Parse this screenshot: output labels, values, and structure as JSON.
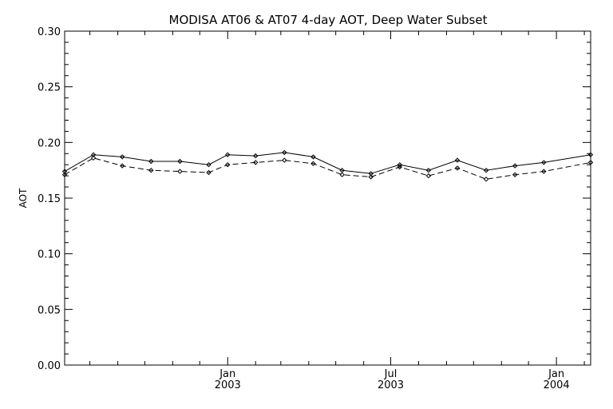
{
  "chart_data": {
    "type": "line",
    "title": "MODISA AT06 & AT07 4-day AOT, Deep Water Subset",
    "xlabel": "",
    "ylabel": "AOT",
    "ylim": [
      0.0,
      0.3
    ],
    "xlim": [
      "2002-07-04",
      "2004-02-08"
    ],
    "y_ticks": [
      "0.00",
      "0.05",
      "0.10",
      "0.15",
      "0.20",
      "0.25",
      "0.30"
    ],
    "x_ticks": [
      {
        "date": "2003-01-01",
        "month": "Jan",
        "year": "2003"
      },
      {
        "date": "2003-07-01",
        "month": "Jul",
        "year": "2003"
      },
      {
        "date": "2004-01-01",
        "month": "Jan",
        "year": "2004"
      }
    ],
    "grid": false,
    "series": [
      {
        "line_style": "solid",
        "marker": "diamond",
        "x": [
          "2002-07-04",
          "2002-08-05",
          "2002-09-06",
          "2002-10-08",
          "2002-11-09",
          "2002-12-11",
          "2003-01-01",
          "2003-02-01",
          "2003-03-05",
          "2003-04-06",
          "2003-05-08",
          "2003-06-09",
          "2003-07-11",
          "2003-08-12",
          "2003-09-13",
          "2003-10-15",
          "2003-11-16",
          "2003-12-18",
          "2004-02-08"
        ],
        "values": [
          0.174,
          0.189,
          0.187,
          0.183,
          0.183,
          0.18,
          0.189,
          0.188,
          0.191,
          0.187,
          0.175,
          0.172,
          0.18,
          0.175,
          0.184,
          0.175,
          0.179,
          0.182,
          0.189
        ]
      },
      {
        "line_style": "dashed",
        "marker": "diamond",
        "x": [
          "2002-07-04",
          "2002-08-05",
          "2002-09-06",
          "2002-10-08",
          "2002-11-09",
          "2002-12-11",
          "2003-01-01",
          "2003-02-01",
          "2003-03-05",
          "2003-04-06",
          "2003-05-08",
          "2003-06-09",
          "2003-07-11",
          "2003-08-12",
          "2003-09-13",
          "2003-10-15",
          "2003-11-16",
          "2003-12-18",
          "2004-02-08"
        ],
        "values": [
          0.171,
          0.186,
          0.179,
          0.175,
          0.174,
          0.173,
          0.18,
          0.182,
          0.184,
          0.181,
          0.171,
          0.169,
          0.178,
          0.17,
          0.177,
          0.167,
          0.171,
          0.174,
          0.182
        ]
      }
    ]
  }
}
